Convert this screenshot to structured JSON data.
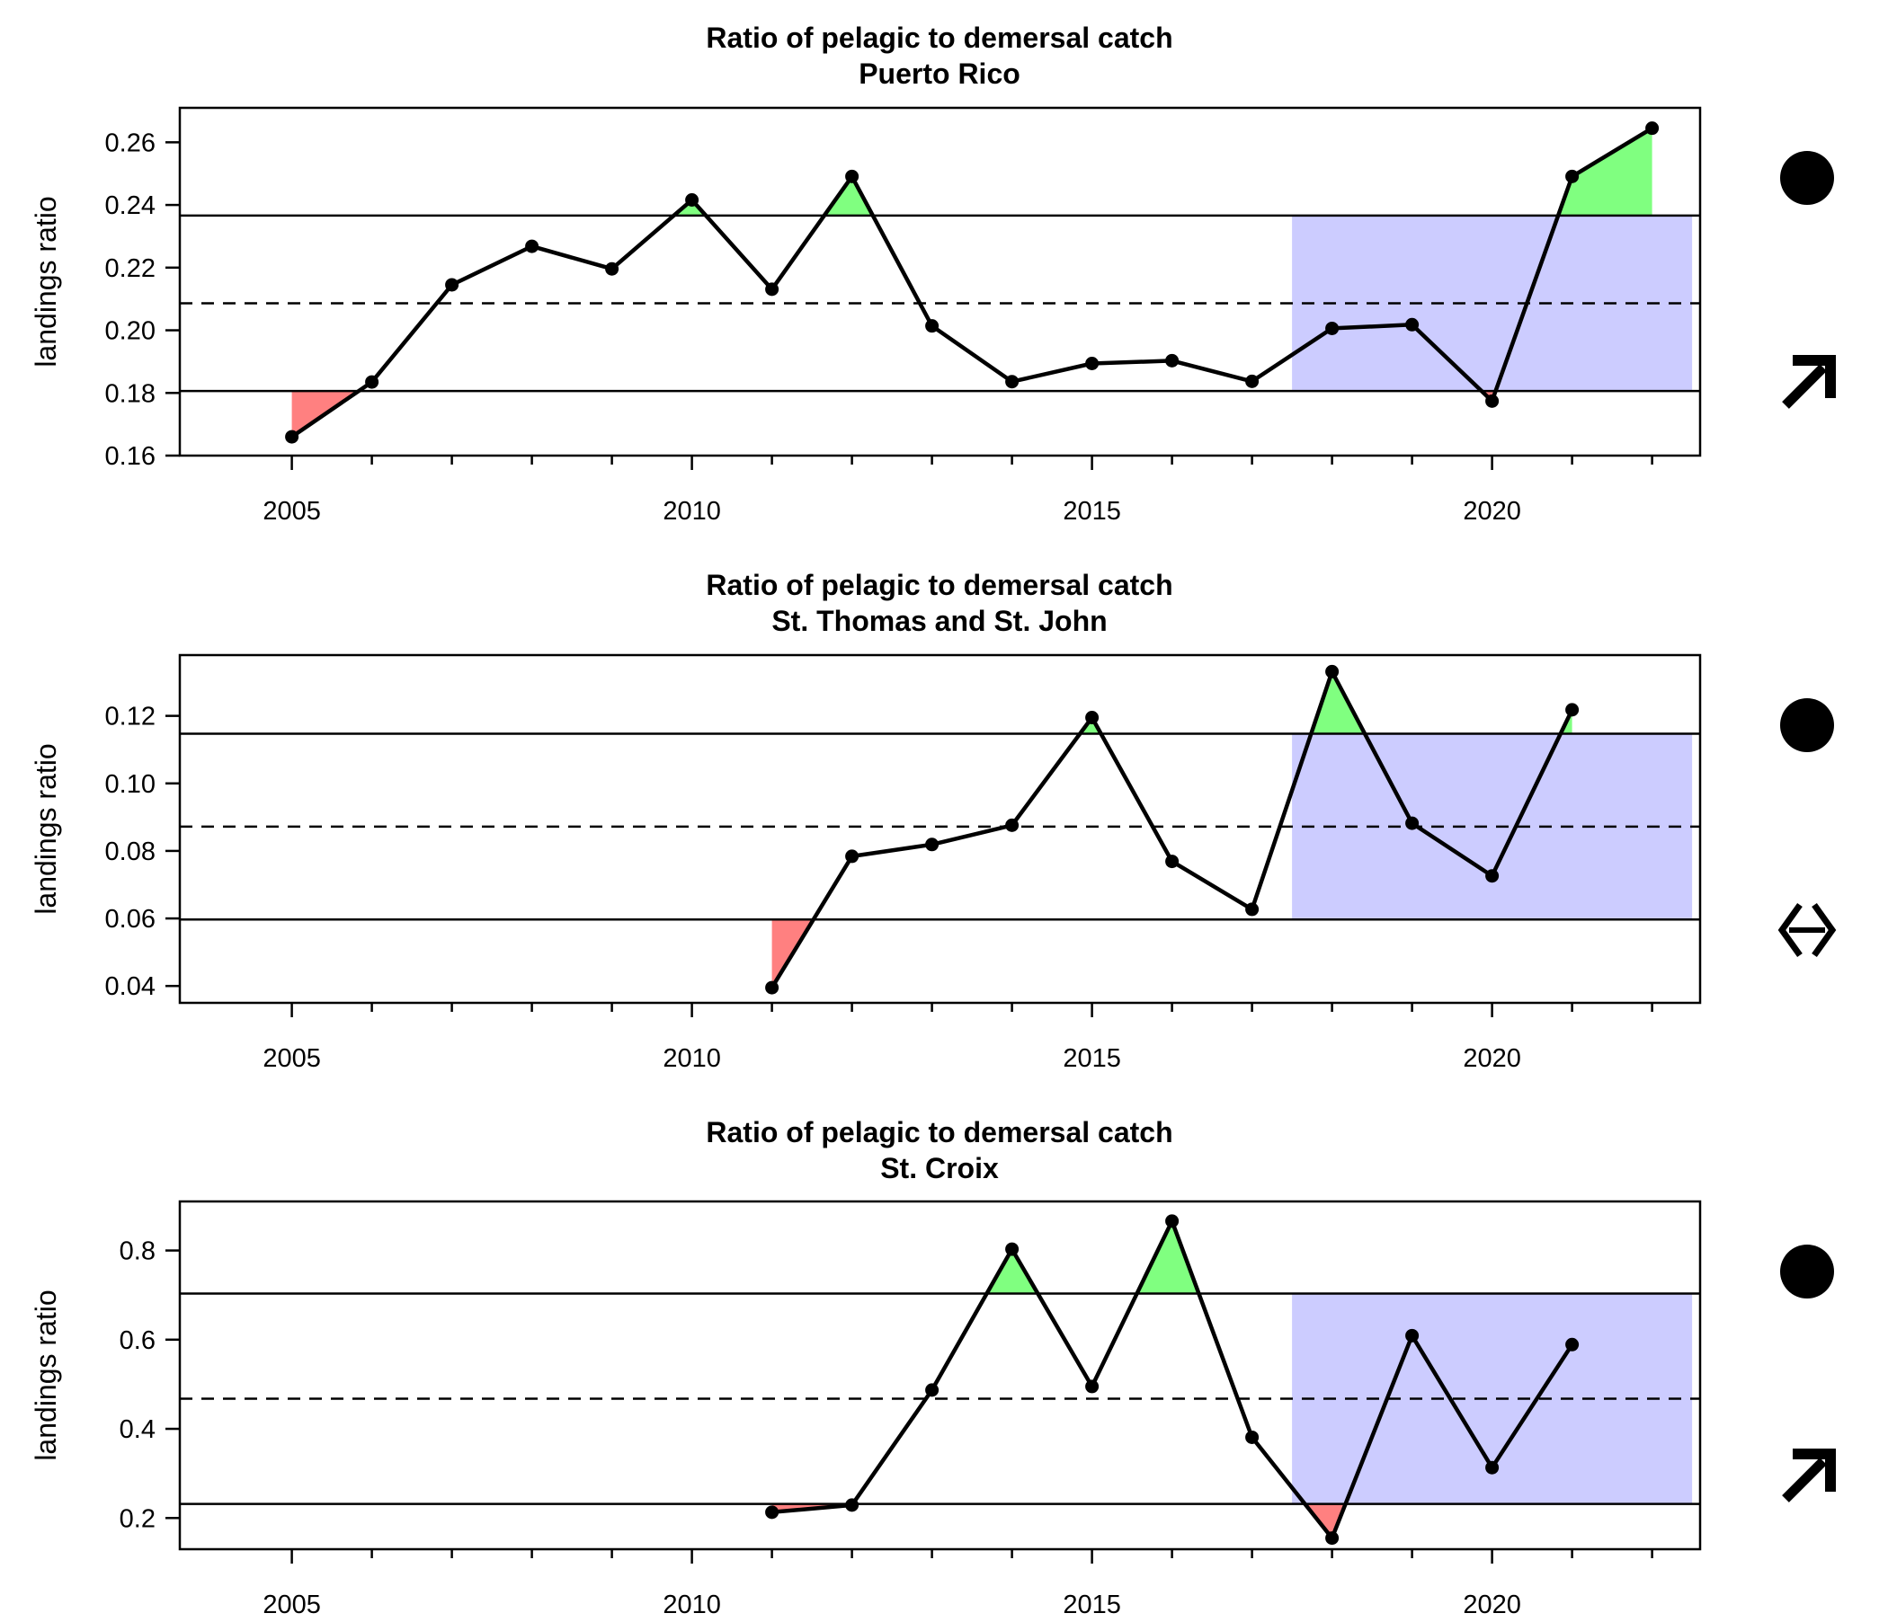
{
  "colors": {
    "above": "#80FF80",
    "below": "#FF8080",
    "recent": "#CCCCFF",
    "line": "#000000"
  },
  "chart_data": [
    {
      "type": "line",
      "title": "Ratio of pelagic to demersal catch",
      "subtitle": "Puerto Rico",
      "xlabel": "",
      "ylabel": "landings ratio",
      "xlim": [
        2003.6,
        2022.6
      ],
      "ylim": [
        0.16,
        0.271
      ],
      "x_ticks": [
        2005,
        2010,
        2015,
        2020
      ],
      "y_ticks": [
        0.16,
        0.18,
        0.2,
        0.22,
        0.24,
        0.26
      ],
      "y_tick_labels": [
        "0.16",
        "0.18",
        "0.20",
        "0.22",
        "0.24",
        "0.26"
      ],
      "x": [
        2005,
        2006,
        2007,
        2008,
        2009,
        2010,
        2011,
        2012,
        2013,
        2014,
        2015,
        2016,
        2017,
        2018,
        2019,
        2020,
        2021,
        2022
      ],
      "y": [
        0.166,
        0.1835,
        0.2145,
        0.2268,
        0.2196,
        0.2416,
        0.2131,
        0.2491,
        0.2014,
        0.1836,
        0.1894,
        0.1903,
        0.1837,
        0.2006,
        0.2018,
        0.1774,
        0.2491,
        0.2645
      ],
      "mean": 0.2086,
      "upper": 0.2366,
      "lower": 0.1806,
      "recent_period": [
        2017.5,
        2022.5
      ],
      "mean_status": "above",
      "trend_status": "increasing",
      "status_icons": [
        "circle-icon",
        "arrow-up-right-icon"
      ]
    },
    {
      "type": "line",
      "title": "Ratio of pelagic to demersal catch",
      "subtitle": "St. Thomas and St. John",
      "xlabel": "",
      "ylabel": "landings ratio",
      "xlim": [
        2003.6,
        2022.6
      ],
      "ylim": [
        0.035,
        0.138
      ],
      "x_ticks": [
        2005,
        2010,
        2015,
        2020
      ],
      "y_ticks": [
        0.04,
        0.06,
        0.08,
        0.1,
        0.12
      ],
      "y_tick_labels": [
        "0.04",
        "0.06",
        "0.08",
        "0.10",
        "0.12"
      ],
      "x": [
        2011,
        2012,
        2013,
        2014,
        2015,
        2016,
        2017,
        2018,
        2019,
        2020,
        2021
      ],
      "y": [
        0.0395,
        0.0784,
        0.0819,
        0.0876,
        0.1195,
        0.0769,
        0.0627,
        0.1331,
        0.0882,
        0.0726,
        0.1218
      ],
      "mean": 0.0872,
      "upper": 0.1147,
      "lower": 0.0597,
      "recent_period": [
        2017.5,
        2022.5
      ],
      "mean_status": "above",
      "trend_status": "no trend",
      "status_icons": [
        "circle-icon",
        "double-arrow-horizontal-icon"
      ]
    },
    {
      "type": "line",
      "title": "Ratio of pelagic to demersal catch",
      "subtitle": "St. Croix",
      "xlabel": "",
      "ylabel": "landings ratio",
      "xlim": [
        2003.6,
        2022.6
      ],
      "ylim": [
        0.13,
        0.91
      ],
      "x_ticks": [
        2005,
        2010,
        2015,
        2020
      ],
      "y_ticks": [
        0.2,
        0.4,
        0.6,
        0.8
      ],
      "y_tick_labels": [
        "0.2",
        "0.4",
        "0.6",
        "0.8"
      ],
      "x": [
        2011,
        2012,
        2013,
        2014,
        2015,
        2016,
        2017,
        2018,
        2019,
        2020,
        2021
      ],
      "y": [
        0.213,
        0.229,
        0.487,
        0.803,
        0.495,
        0.866,
        0.381,
        0.155,
        0.609,
        0.313,
        0.589
      ],
      "mean": 0.4675,
      "upper": 0.7035,
      "lower": 0.2315,
      "recent_period": [
        2017.5,
        2022.5
      ],
      "mean_status": "above",
      "trend_status": "increasing",
      "status_icons": [
        "circle-icon",
        "arrow-up-right-icon"
      ]
    }
  ]
}
